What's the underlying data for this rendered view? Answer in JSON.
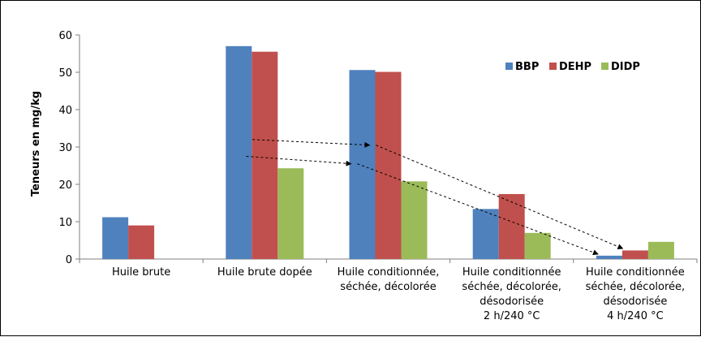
{
  "chart_data": {
    "type": "bar",
    "ylabel": "Teneurs en mg/kg",
    "ylim": [
      0,
      60
    ],
    "yticks": [
      0,
      10,
      20,
      30,
      40,
      50,
      60
    ],
    "categories": [
      [
        "Huile brute"
      ],
      [
        "Huile brute dopée"
      ],
      [
        "Huile conditionnée,",
        "séchée, décolorée"
      ],
      [
        "Huile conditionnée",
        "séchée, décolorée,",
        "désodorisée",
        "2 h/240 °C"
      ],
      [
        "Huile conditionnée",
        "séchée, décolorée,",
        "désodorisée",
        "4 h/240 °C"
      ]
    ],
    "series": [
      {
        "name": "BBP",
        "color": "#4f81bd",
        "values": [
          11.2,
          57.0,
          50.6,
          13.4,
          0.9
        ]
      },
      {
        "name": "DEHP",
        "color": "#c0504d",
        "values": [
          9.0,
          55.5,
          50.1,
          17.4,
          2.3
        ]
      },
      {
        "name": "DIDP",
        "color": "#9bbb59",
        "values": [
          null,
          24.3,
          20.8,
          7.0,
          4.6
        ]
      }
    ],
    "legend_position": "top-right",
    "grid": false,
    "annotations": [
      {
        "type": "dashed-arrow",
        "from": [
          1.4,
          32.0
        ],
        "to": [
          2.35,
          30.5
        ]
      },
      {
        "type": "dashed-arrow",
        "from": [
          2.4,
          30.5
        ],
        "to": [
          4.4,
          2.8
        ]
      },
      {
        "type": "dashed-arrow",
        "from": [
          1.35,
          27.5
        ],
        "to": [
          2.2,
          25.5
        ]
      },
      {
        "type": "dashed-arrow",
        "from": [
          2.25,
          25.5
        ],
        "to": [
          4.2,
          1.3
        ]
      }
    ]
  }
}
